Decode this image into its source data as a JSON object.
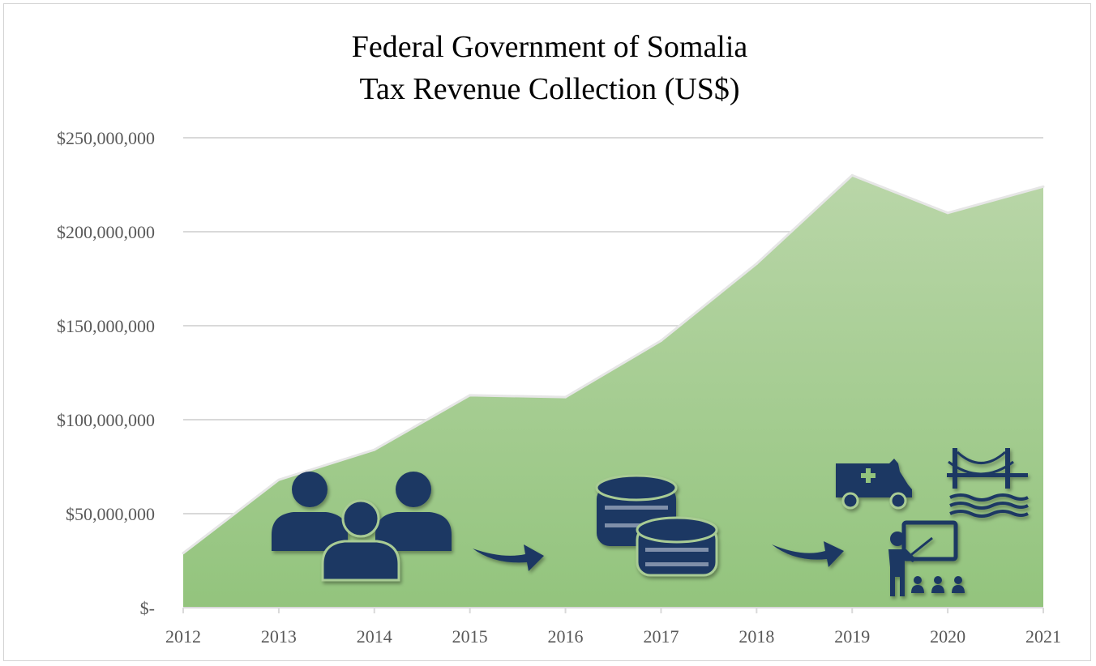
{
  "chart_data": {
    "type": "area",
    "title_lines": [
      "Federal Government of Somalia",
      "Tax Revenue Collection (US$)"
    ],
    "x": [
      "2012",
      "2013",
      "2014",
      "2015",
      "2016",
      "2017",
      "2018",
      "2019",
      "2020",
      "2021"
    ],
    "series": [
      {
        "values": [
          29000000,
          68000000,
          84000000,
          113000000,
          112000000,
          142000000,
          183000000,
          230000000,
          210000000,
          224000000
        ]
      }
    ],
    "ylim": [
      0,
      250000000
    ],
    "yticks": [
      0,
      50000000,
      100000000,
      150000000,
      200000000,
      250000000
    ],
    "ytick_labels": [
      "$-",
      "$50,000,000",
      "$100,000,000",
      "$150,000,000",
      "$200,000,000",
      "$250,000,000"
    ],
    "grid": true,
    "colors": {
      "area_top": "#b9d6a8",
      "area_bottom": "#93c47d",
      "area_outline": "#e6e6e6",
      "gridline": "#d9d9d9",
      "icon": "#1f3864"
    },
    "icons": [
      "people-group-icon",
      "arrow-icon",
      "coins-stack-icon",
      "arrow-icon",
      "ambulance-icon",
      "bridge-icon",
      "teacher-classroom-icon"
    ]
  }
}
